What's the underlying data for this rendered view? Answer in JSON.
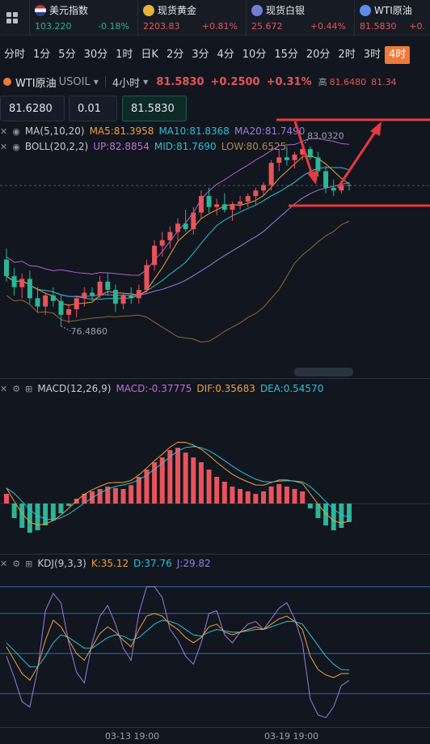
{
  "colors": {
    "up": "#e8545a",
    "down": "#2cb596",
    "accent": "#ef7a3a",
    "bg": "#11161f",
    "ma5": "#f0a03c",
    "ma10": "#2ec0d6",
    "ma20": "#9a7ddc",
    "boll_low": "#8a6a3a",
    "annotation": "#e8393f"
  },
  "tickers": [
    {
      "name": "美元指数",
      "icon": "us-flag-icon",
      "price": "103.220",
      "change": "-0.18%",
      "dir": "down"
    },
    {
      "name": "现货黄金",
      "icon": "gold-icon",
      "price": "2203.83",
      "change": "+0.81%",
      "dir": "up"
    },
    {
      "name": "现货白银",
      "icon": "silver-icon",
      "price": "25.672",
      "change": "+0.44%",
      "dir": "up"
    },
    {
      "name": "WTI原油",
      "icon": "oil-icon",
      "price": "81.5830",
      "change": "+0.",
      "dir": "up"
    }
  ],
  "periods": [
    "分时",
    "1分",
    "5分",
    "30分",
    "1时",
    "日K",
    "2分",
    "3分",
    "4分",
    "10分",
    "15分",
    "20分",
    "2时",
    "3时",
    "4时"
  ],
  "active_period": "4时",
  "instrument": {
    "name": "WTI原油",
    "code": "USOIL",
    "interval": "4小时",
    "price": "81.5830",
    "change": "+0.2500",
    "change_pct": "+0.31%",
    "high_label": "高",
    "high": "81.6480",
    "low_partial": "81.34"
  },
  "trade": {
    "sell_price": "81.6280",
    "quantity": "0.01",
    "buy_price": "81.5830"
  },
  "ma_legend": {
    "name": "MA(5,10,20)",
    "ma5": "MA5:81.3958",
    "ma10": "MA10:81.8368",
    "ma20": "MA20:81.7490"
  },
  "boll_legend": {
    "name": "BOLL(20,2,2)",
    "up": "UP:82.8854",
    "mid": "MID:81.7690",
    "low": "LOW:80.6525"
  },
  "main_chart": {
    "high_mark": "83.0320",
    "low_mark": "76.4860"
  },
  "macd_legend": {
    "name": "MACD(12,26,9)",
    "macd": "MACD:-0.37775",
    "dif": "DIF:0.35683",
    "dea": "DEA:0.54570"
  },
  "kdj_legend": {
    "name": "KDJ(9,3,3)",
    "k": "K:35.12",
    "d": "D:37.76",
    "j": "J:29.82"
  },
  "x_axis": [
    "03-13 19:00",
    "03-19 19:00"
  ],
  "chart_data": {
    "type": "candlestick",
    "symbol": "USOIL",
    "interval": "4H",
    "candles": [
      {
        "o": 78.9,
        "h": 79.3,
        "l": 78.1,
        "c": 78.3
      },
      {
        "o": 78.3,
        "h": 78.6,
        "l": 77.6,
        "c": 77.9
      },
      {
        "o": 77.9,
        "h": 78.4,
        "l": 77.5,
        "c": 78.2
      },
      {
        "o": 78.2,
        "h": 78.5,
        "l": 77.3,
        "c": 77.5
      },
      {
        "o": 77.5,
        "h": 77.9,
        "l": 77.0,
        "c": 77.2
      },
      {
        "o": 77.2,
        "h": 77.7,
        "l": 76.9,
        "c": 77.6
      },
      {
        "o": 77.6,
        "h": 77.9,
        "l": 77.2,
        "c": 77.4
      },
      {
        "o": 77.4,
        "h": 77.6,
        "l": 76.49,
        "c": 76.9
      },
      {
        "o": 76.9,
        "h": 77.3,
        "l": 76.6,
        "c": 77.1
      },
      {
        "o": 77.1,
        "h": 77.6,
        "l": 76.8,
        "c": 77.5
      },
      {
        "o": 77.5,
        "h": 77.9,
        "l": 77.2,
        "c": 77.7
      },
      {
        "o": 77.7,
        "h": 77.9,
        "l": 77.4,
        "c": 77.6
      },
      {
        "o": 77.6,
        "h": 78.3,
        "l": 77.5,
        "c": 78.1
      },
      {
        "o": 78.1,
        "h": 78.4,
        "l": 77.6,
        "c": 77.8
      },
      {
        "o": 77.8,
        "h": 78.0,
        "l": 77.0,
        "c": 77.3
      },
      {
        "o": 77.3,
        "h": 77.7,
        "l": 77.1,
        "c": 77.6
      },
      {
        "o": 77.6,
        "h": 77.9,
        "l": 77.3,
        "c": 77.5
      },
      {
        "o": 77.5,
        "h": 78.0,
        "l": 77.3,
        "c": 77.8
      },
      {
        "o": 77.8,
        "h": 78.9,
        "l": 77.7,
        "c": 78.7
      },
      {
        "o": 78.7,
        "h": 79.6,
        "l": 78.5,
        "c": 79.4
      },
      {
        "o": 79.4,
        "h": 79.9,
        "l": 79.0,
        "c": 79.6
      },
      {
        "o": 79.6,
        "h": 80.1,
        "l": 79.3,
        "c": 79.9
      },
      {
        "o": 79.9,
        "h": 80.4,
        "l": 79.6,
        "c": 80.2
      },
      {
        "o": 80.2,
        "h": 80.7,
        "l": 79.9,
        "c": 80.0
      },
      {
        "o": 80.0,
        "h": 80.8,
        "l": 79.8,
        "c": 80.6
      },
      {
        "o": 80.6,
        "h": 81.4,
        "l": 80.4,
        "c": 81.2
      },
      {
        "o": 81.2,
        "h": 81.5,
        "l": 80.6,
        "c": 80.8
      },
      {
        "o": 80.8,
        "h": 81.1,
        "l": 80.5,
        "c": 80.9
      },
      {
        "o": 80.9,
        "h": 81.3,
        "l": 80.6,
        "c": 80.7
      },
      {
        "o": 80.7,
        "h": 81.0,
        "l": 80.3,
        "c": 80.9
      },
      {
        "o": 80.9,
        "h": 81.2,
        "l": 80.7,
        "c": 81.0
      },
      {
        "o": 81.0,
        "h": 81.3,
        "l": 80.8,
        "c": 81.2
      },
      {
        "o": 81.2,
        "h": 81.5,
        "l": 80.9,
        "c": 81.4
      },
      {
        "o": 81.4,
        "h": 81.7,
        "l": 81.2,
        "c": 81.6
      },
      {
        "o": 81.6,
        "h": 82.5,
        "l": 81.4,
        "c": 82.4
      },
      {
        "o": 82.4,
        "h": 82.9,
        "l": 82.1,
        "c": 82.6
      },
      {
        "o": 82.6,
        "h": 83.0,
        "l": 82.3,
        "c": 82.5
      },
      {
        "o": 82.5,
        "h": 82.8,
        "l": 82.2,
        "c": 82.7
      },
      {
        "o": 82.7,
        "h": 83.03,
        "l": 82.5,
        "c": 82.9
      },
      {
        "o": 82.9,
        "h": 83.0,
        "l": 82.5,
        "c": 82.6
      },
      {
        "o": 82.6,
        "h": 82.8,
        "l": 81.9,
        "c": 82.1
      },
      {
        "o": 82.1,
        "h": 82.3,
        "l": 81.3,
        "c": 81.5
      },
      {
        "o": 81.5,
        "h": 81.8,
        "l": 81.2,
        "c": 81.4
      },
      {
        "o": 81.4,
        "h": 81.7,
        "l": 81.3,
        "c": 81.6
      },
      {
        "o": 81.6,
        "h": 81.7,
        "l": 81.4,
        "c": 81.58
      }
    ],
    "macd_hist": [
      0.2,
      -0.3,
      -0.5,
      -0.6,
      -0.55,
      -0.45,
      -0.35,
      -0.2,
      -0.05,
      0.1,
      0.2,
      0.25,
      0.3,
      0.35,
      0.32,
      0.3,
      0.38,
      0.55,
      0.7,
      0.85,
      0.95,
      1.1,
      1.15,
      1.05,
      0.95,
      0.85,
      0.7,
      0.55,
      0.45,
      0.35,
      0.3,
      0.25,
      0.2,
      0.25,
      0.35,
      0.4,
      0.35,
      0.3,
      0.25,
      -0.1,
      -0.3,
      -0.45,
      -0.55,
      -0.5,
      -0.38
    ],
    "kdj": {
      "k": [
        55,
        45,
        35,
        30,
        40,
        60,
        75,
        70,
        60,
        50,
        45,
        55,
        65,
        70,
        66,
        60,
        55,
        68,
        78,
        80,
        78,
        72,
        68,
        62,
        58,
        62,
        70,
        72,
        66,
        64,
        66,
        68,
        70,
        68,
        72,
        76,
        78,
        74,
        68,
        48,
        38,
        34,
        32,
        35,
        35
      ],
      "d": [
        58,
        52,
        46,
        40,
        40,
        48,
        58,
        64,
        62,
        58,
        54,
        54,
        58,
        62,
        64,
        63,
        60,
        62,
        67,
        72,
        75,
        74,
        72,
        68,
        64,
        63,
        66,
        68,
        67,
        66,
        66,
        67,
        68,
        68,
        70,
        72,
        74,
        74,
        72,
        64,
        56,
        48,
        42,
        38,
        37.76
      ],
      "j": [
        48,
        32,
        14,
        10,
        38,
        82,
        95,
        88,
        58,
        36,
        28,
        58,
        78,
        86,
        72,
        54,
        45,
        80,
        100,
        100,
        92,
        68,
        60,
        48,
        42,
        58,
        80,
        82,
        64,
        58,
        66,
        72,
        74,
        68,
        76,
        84,
        88,
        76,
        58,
        16,
        4,
        2,
        10,
        26,
        29.82
      ]
    }
  }
}
